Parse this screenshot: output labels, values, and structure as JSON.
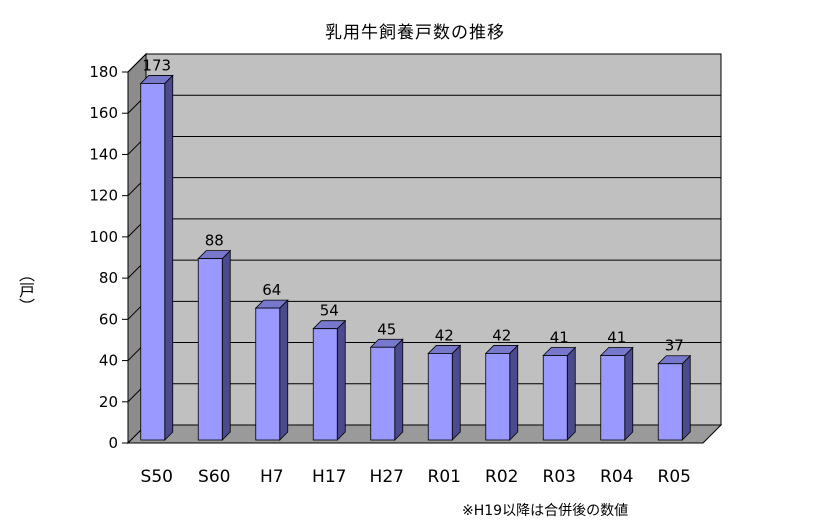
{
  "chart_data": {
    "type": "bar",
    "title": "乳用牛飼養戸数の推移",
    "ylabel": "（戸）",
    "xlabel": "",
    "categories": [
      "S50",
      "S60",
      "H7",
      "H17",
      "H27",
      "R01",
      "R02",
      "R03",
      "R04",
      "R05"
    ],
    "values": [
      173,
      88,
      64,
      54,
      45,
      42,
      42,
      41,
      41,
      37
    ],
    "ylim": [
      0,
      180
    ],
    "yticks": [
      0,
      20,
      40,
      60,
      80,
      100,
      120,
      140,
      160,
      180
    ],
    "grid": true,
    "data_labels": true,
    "three_d": true
  },
  "footnote": "※H19以降は合併後の数値",
  "colors": {
    "bar_front": "#9999ff",
    "bar_side": "#4a4a8c",
    "bar_top": "#7777cc",
    "plot_back": "#c0c0c0",
    "plot_floor": "#9a9a9a",
    "plot_wall": "#8c8c8c",
    "gridline": "#000000"
  }
}
